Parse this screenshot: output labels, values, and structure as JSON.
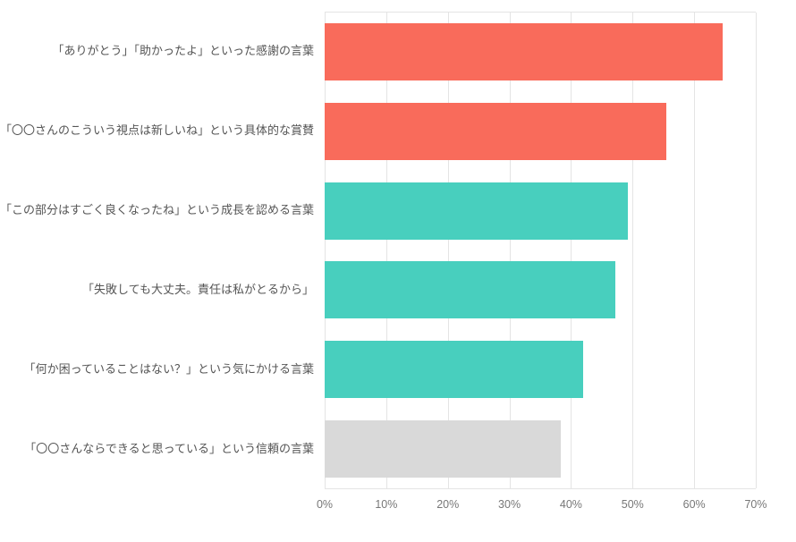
{
  "chart_data": {
    "type": "bar",
    "orientation": "horizontal",
    "title": "",
    "xlabel": "",
    "ylabel": "",
    "categories": [
      "「ありがとう」「助かったよ」といった感謝の言葉",
      "「〇〇さんのこういう視点は新しいね」という具体的な賞賛",
      "「この部分はすごく良くなったね」という成長を認める言葉",
      "「失敗しても大丈夫。責任は私がとるから」",
      "「何か困っていることはない？」という気にかける言葉",
      "「〇〇さんならできると思っている」という信頼の言葉"
    ],
    "values": [
      64.6,
      55.5,
      49.3,
      47.2,
      41.9,
      38.4
    ],
    "bar_colors": [
      "#f96b5b",
      "#f96b5b",
      "#48cfbe",
      "#48cfbe",
      "#48cfbe",
      "#d9d9d9"
    ],
    "x_ticks": [
      "0%",
      "10%",
      "20%",
      "30%",
      "40%",
      "50%",
      "60%",
      "70%"
    ],
    "x_tick_values": [
      0,
      10,
      20,
      30,
      40,
      50,
      60,
      70
    ],
    "xlim": [
      0,
      70
    ],
    "grid": "vertical",
    "legend": "none"
  },
  "colors": {
    "grid": "#e4e4e4",
    "label_text": "#555555",
    "axis_text": "#777777",
    "background": "#ffffff"
  }
}
